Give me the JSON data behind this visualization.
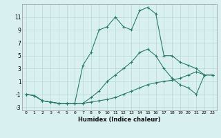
{
  "xlabel": "Humidex (Indice chaleur)",
  "x_ticks": [
    0,
    1,
    2,
    3,
    4,
    5,
    6,
    7,
    8,
    9,
    10,
    11,
    12,
    13,
    14,
    15,
    16,
    17,
    18,
    19,
    20,
    21,
    22,
    23
  ],
  "y_ticks": [
    -3,
    -1,
    1,
    3,
    5,
    7,
    9,
    11
  ],
  "xlim": [
    -0.5,
    23.5
  ],
  "ylim": [
    -3.5,
    13.0
  ],
  "line1_x": [
    0,
    1,
    2,
    3,
    4,
    5,
    6,
    7,
    8,
    9,
    10,
    11,
    12,
    13,
    14,
    15,
    16,
    17,
    18,
    19,
    20,
    21,
    22,
    23
  ],
  "line1_y": [
    -1,
    -1.2,
    -2,
    -2.2,
    -2.4,
    -2.4,
    -2.4,
    -2.4,
    -2.2,
    -2,
    -1.8,
    -1.5,
    -1,
    -0.5,
    0,
    0.5,
    0.8,
    1,
    1.2,
    1.5,
    2,
    2.5,
    2,
    2
  ],
  "line2_x": [
    0,
    1,
    2,
    3,
    4,
    5,
    6,
    7,
    8,
    9,
    10,
    11,
    12,
    13,
    14,
    15,
    16,
    17,
    18,
    19,
    20,
    21,
    22,
    23
  ],
  "line2_y": [
    -1,
    -1.2,
    -2,
    -2.2,
    -2.4,
    -2.4,
    -2.4,
    -2.4,
    -1.5,
    -0.5,
    1,
    2,
    3,
    4,
    5.5,
    6,
    5,
    3,
    1.5,
    0.5,
    0,
    -1,
    2,
    2
  ],
  "line3_x": [
    0,
    1,
    2,
    3,
    4,
    5,
    6,
    7,
    8,
    9,
    10,
    11,
    12,
    13,
    14,
    15,
    16,
    17,
    18,
    19,
    20,
    21,
    22,
    23
  ],
  "line3_y": [
    -1,
    -1.2,
    -2,
    -2.2,
    -2.4,
    -2.4,
    -2.4,
    3.5,
    5.5,
    9,
    9.5,
    11,
    9.5,
    9,
    12,
    12.5,
    11.5,
    5,
    5,
    4,
    3.5,
    3,
    2,
    2
  ],
  "line_color": "#2d7a6e",
  "bg_color": "#d8f0f0",
  "grid_color": "#b8d8d8",
  "marker": "+"
}
